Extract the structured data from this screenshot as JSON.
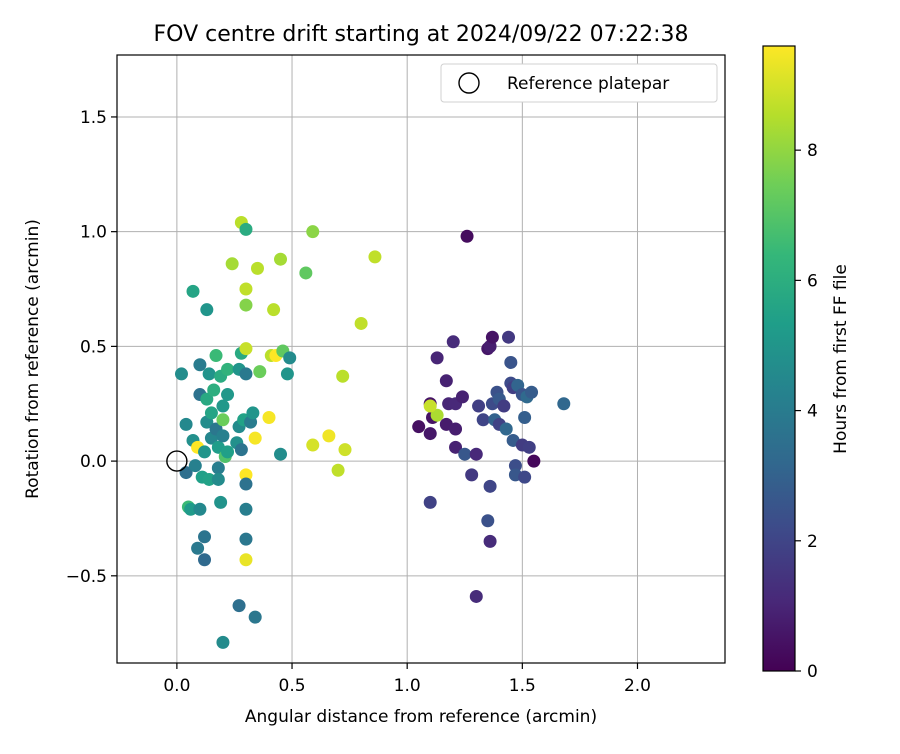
{
  "chart_data": {
    "type": "scatter",
    "title": "FOV centre drift starting at 2024/09/22 07:22:38",
    "xlabel": "Angular distance from reference (arcmin)",
    "ylabel": "Rotation from reference (arcmin)",
    "xlim": [
      -0.26,
      2.38
    ],
    "ylim": [
      -0.88,
      1.77
    ],
    "xticks": [
      "0.0",
      "0.5",
      "1.0",
      "1.5",
      "2.0"
    ],
    "yticks": [
      "−0.5",
      "0.0",
      "0.5",
      "1.0",
      "1.5"
    ],
    "xtick_values": [
      0,
      0.5,
      1.0,
      1.5,
      2.0
    ],
    "ytick_values": [
      -0.5,
      0,
      0.5,
      1.0,
      1.5
    ],
    "grid": true,
    "legend": {
      "position": "top-right",
      "label": "Reference platepar"
    },
    "reference_point": {
      "x": 0.0,
      "y": 0.0
    },
    "colorbar": {
      "label": "Hours from first FF file",
      "colormap": "viridis",
      "range": [
        0,
        9.6
      ],
      "ticks": [
        "0",
        "2",
        "4",
        "6",
        "8"
      ],
      "tick_values": [
        0,
        2,
        4,
        6,
        8
      ]
    },
    "colors": {
      "viridis_stops": [
        "#440154",
        "#482878",
        "#3e4989",
        "#31688e",
        "#26828e",
        "#1f9e89",
        "#35b779",
        "#6ece58",
        "#b5de2b",
        "#fde725"
      ],
      "grid": "#b0b0b0",
      "axis": "#000000"
    },
    "points": [
      {
        "x": 1.26,
        "y": 0.98,
        "h": 0.3
      },
      {
        "x": 1.55,
        "y": 0.0,
        "h": 0.2
      },
      {
        "x": 1.05,
        "y": 0.15,
        "h": 0.4
      },
      {
        "x": 1.1,
        "y": 0.12,
        "h": 0.6
      },
      {
        "x": 1.1,
        "y": 0.25,
        "h": 0.5
      },
      {
        "x": 1.11,
        "y": 0.19,
        "h": 0.5
      },
      {
        "x": 1.13,
        "y": 0.45,
        "h": 1.0
      },
      {
        "x": 1.17,
        "y": 0.35,
        "h": 0.9
      },
      {
        "x": 1.17,
        "y": 0.16,
        "h": 0.7
      },
      {
        "x": 1.18,
        "y": 0.25,
        "h": 1.0
      },
      {
        "x": 1.2,
        "y": 0.52,
        "h": 1.2
      },
      {
        "x": 1.21,
        "y": 0.06,
        "h": 0.9
      },
      {
        "x": 1.21,
        "y": 0.14,
        "h": 0.8
      },
      {
        "x": 1.21,
        "y": 0.25,
        "h": 1.1
      },
      {
        "x": 1.24,
        "y": 0.28,
        "h": 0.9
      },
      {
        "x": 1.25,
        "y": 0.03,
        "h": 2.6
      },
      {
        "x": 1.28,
        "y": -0.06,
        "h": 1.6
      },
      {
        "x": 1.3,
        "y": -0.59,
        "h": 1.2
      },
      {
        "x": 1.3,
        "y": 0.03,
        "h": 1.1
      },
      {
        "x": 1.31,
        "y": 0.24,
        "h": 1.8
      },
      {
        "x": 1.33,
        "y": 0.18,
        "h": 2.0
      },
      {
        "x": 1.35,
        "y": 0.49,
        "h": 0.6
      },
      {
        "x": 1.36,
        "y": 0.5,
        "h": 0.8
      },
      {
        "x": 1.37,
        "y": 0.54,
        "h": 0.5
      },
      {
        "x": 1.35,
        "y": -0.26,
        "h": 2.4
      },
      {
        "x": 1.36,
        "y": -0.35,
        "h": 1.2
      },
      {
        "x": 1.36,
        "y": -0.11,
        "h": 2.0
      },
      {
        "x": 1.37,
        "y": 0.25,
        "h": 2.2
      },
      {
        "x": 1.38,
        "y": 0.18,
        "h": 3.0
      },
      {
        "x": 1.39,
        "y": 0.3,
        "h": 2.4
      },
      {
        "x": 1.4,
        "y": 0.16,
        "h": 1.9
      },
      {
        "x": 1.4,
        "y": 0.27,
        "h": 2.7
      },
      {
        "x": 1.42,
        "y": 0.24,
        "h": 1.7
      },
      {
        "x": 1.43,
        "y": 0.14,
        "h": 3.2
      },
      {
        "x": 1.44,
        "y": 0.54,
        "h": 1.6
      },
      {
        "x": 1.45,
        "y": 0.43,
        "h": 2.5
      },
      {
        "x": 1.45,
        "y": 0.34,
        "h": 2.2
      },
      {
        "x": 1.46,
        "y": 0.32,
        "h": 1.8
      },
      {
        "x": 1.46,
        "y": 0.09,
        "h": 2.8
      },
      {
        "x": 1.47,
        "y": -0.02,
        "h": 2.3
      },
      {
        "x": 1.47,
        "y": -0.06,
        "h": 2.6
      },
      {
        "x": 1.48,
        "y": 0.33,
        "h": 3.1
      },
      {
        "x": 1.5,
        "y": 0.07,
        "h": 1.7
      },
      {
        "x": 1.5,
        "y": 0.29,
        "h": 2.5
      },
      {
        "x": 1.51,
        "y": -0.07,
        "h": 2.1
      },
      {
        "x": 1.51,
        "y": 0.19,
        "h": 2.9
      },
      {
        "x": 1.52,
        "y": 0.28,
        "h": 3.3
      },
      {
        "x": 1.53,
        "y": 0.06,
        "h": 1.8
      },
      {
        "x": 1.54,
        "y": 0.3,
        "h": 2.8
      },
      {
        "x": 1.68,
        "y": 0.25,
        "h": 3.2
      },
      {
        "x": 1.1,
        "y": -0.18,
        "h": 1.9
      },
      {
        "x": 1.13,
        "y": 0.2,
        "h": 8.4
      },
      {
        "x": 1.1,
        "y": 0.24,
        "h": 8.8
      },
      {
        "x": 0.02,
        "y": 0.38,
        "h": 4.7
      },
      {
        "x": 0.04,
        "y": 0.16,
        "h": 4.5
      },
      {
        "x": 0.04,
        "y": -0.05,
        "h": 3.5
      },
      {
        "x": 0.05,
        "y": -0.2,
        "h": 6.5
      },
      {
        "x": 0.06,
        "y": -0.21,
        "h": 5.2
      },
      {
        "x": 0.07,
        "y": 0.74,
        "h": 5.6
      },
      {
        "x": 0.07,
        "y": 0.09,
        "h": 4.8
      },
      {
        "x": 0.08,
        "y": -0.02,
        "h": 4.2
      },
      {
        "x": 0.09,
        "y": -0.38,
        "h": 3.9
      },
      {
        "x": 0.09,
        "y": 0.06,
        "h": 9.6
      },
      {
        "x": 0.1,
        "y": -0.21,
        "h": 4.5
      },
      {
        "x": 0.1,
        "y": 0.29,
        "h": 3.6
      },
      {
        "x": 0.1,
        "y": 0.42,
        "h": 4.0
      },
      {
        "x": 0.11,
        "y": -0.07,
        "h": 5.4
      },
      {
        "x": 0.12,
        "y": -0.33,
        "h": 3.7
      },
      {
        "x": 0.12,
        "y": -0.43,
        "h": 3.3
      },
      {
        "x": 0.12,
        "y": 0.04,
        "h": 5.0
      },
      {
        "x": 0.13,
        "y": 0.66,
        "h": 5.0
      },
      {
        "x": 0.13,
        "y": 0.17,
        "h": 4.7
      },
      {
        "x": 0.13,
        "y": 0.27,
        "h": 5.8
      },
      {
        "x": 0.14,
        "y": 0.38,
        "h": 4.9
      },
      {
        "x": 0.14,
        "y": -0.08,
        "h": 5.5
      },
      {
        "x": 0.15,
        "y": 0.1,
        "h": 4.4
      },
      {
        "x": 0.15,
        "y": 0.21,
        "h": 5.6
      },
      {
        "x": 0.16,
        "y": 0.31,
        "h": 6.0
      },
      {
        "x": 0.17,
        "y": 0.46,
        "h": 6.5
      },
      {
        "x": 0.17,
        "y": 0.14,
        "h": 3.8
      },
      {
        "x": 0.18,
        "y": -0.03,
        "h": 4.1
      },
      {
        "x": 0.18,
        "y": 0.06,
        "h": 5.3
      },
      {
        "x": 0.18,
        "y": -0.08,
        "h": 4.6
      },
      {
        "x": 0.19,
        "y": -0.18,
        "h": 4.9
      },
      {
        "x": 0.19,
        "y": 0.37,
        "h": 5.9
      },
      {
        "x": 0.2,
        "y": 0.24,
        "h": 5.1
      },
      {
        "x": 0.2,
        "y": 0.11,
        "h": 4.2
      },
      {
        "x": 0.2,
        "y": 0.18,
        "h": 7.4
      },
      {
        "x": 0.2,
        "y": -0.79,
        "h": 4.6
      },
      {
        "x": 0.21,
        "y": 0.02,
        "h": 6.9
      },
      {
        "x": 0.22,
        "y": 0.04,
        "h": 5.4
      },
      {
        "x": 0.22,
        "y": 0.29,
        "h": 5.1
      },
      {
        "x": 0.22,
        "y": 0.4,
        "h": 6.2
      },
      {
        "x": 0.24,
        "y": 0.86,
        "h": 8.3
      },
      {
        "x": 0.26,
        "y": 0.08,
        "h": 4.8
      },
      {
        "x": 0.27,
        "y": 0.15,
        "h": 4.6
      },
      {
        "x": 0.27,
        "y": -0.63,
        "h": 3.5
      },
      {
        "x": 0.27,
        "y": 0.4,
        "h": 5.0
      },
      {
        "x": 0.28,
        "y": 1.04,
        "h": 8.6
      },
      {
        "x": 0.28,
        "y": 0.05,
        "h": 3.7
      },
      {
        "x": 0.28,
        "y": 0.47,
        "h": 5.8
      },
      {
        "x": 0.29,
        "y": 0.18,
        "h": 5.5
      },
      {
        "x": 0.3,
        "y": 1.01,
        "h": 5.9
      },
      {
        "x": 0.3,
        "y": 0.75,
        "h": 8.7
      },
      {
        "x": 0.3,
        "y": 0.68,
        "h": 7.8
      },
      {
        "x": 0.3,
        "y": 0.49,
        "h": 8.8
      },
      {
        "x": 0.3,
        "y": 0.38,
        "h": 3.9
      },
      {
        "x": 0.3,
        "y": -0.06,
        "h": 9.6
      },
      {
        "x": 0.3,
        "y": -0.1,
        "h": 3.6
      },
      {
        "x": 0.3,
        "y": -0.21,
        "h": 4.1
      },
      {
        "x": 0.3,
        "y": -0.34,
        "h": 3.8
      },
      {
        "x": 0.3,
        "y": -0.43,
        "h": 9.3
      },
      {
        "x": 0.32,
        "y": 0.17,
        "h": 4.0
      },
      {
        "x": 0.33,
        "y": 0.21,
        "h": 5.0
      },
      {
        "x": 0.34,
        "y": -0.68,
        "h": 3.8
      },
      {
        "x": 0.34,
        "y": 0.1,
        "h": 9.5
      },
      {
        "x": 0.35,
        "y": 0.84,
        "h": 8.6
      },
      {
        "x": 0.36,
        "y": 0.39,
        "h": 7.4
      },
      {
        "x": 0.4,
        "y": 0.19,
        "h": 9.5
      },
      {
        "x": 0.41,
        "y": 0.46,
        "h": 8.6
      },
      {
        "x": 0.42,
        "y": 0.66,
        "h": 8.6
      },
      {
        "x": 0.43,
        "y": 0.46,
        "h": 9.6
      },
      {
        "x": 0.45,
        "y": 0.88,
        "h": 8.3
      },
      {
        "x": 0.45,
        "y": 0.03,
        "h": 4.7
      },
      {
        "x": 0.46,
        "y": 0.48,
        "h": 7.2
      },
      {
        "x": 0.48,
        "y": 0.38,
        "h": 5.0
      },
      {
        "x": 0.49,
        "y": 0.45,
        "h": 4.6
      },
      {
        "x": 0.56,
        "y": 0.82,
        "h": 7.2
      },
      {
        "x": 0.59,
        "y": 1.0,
        "h": 7.9
      },
      {
        "x": 0.59,
        "y": 0.07,
        "h": 9.0
      },
      {
        "x": 0.66,
        "y": 0.11,
        "h": 9.4
      },
      {
        "x": 0.7,
        "y": -0.04,
        "h": 8.7
      },
      {
        "x": 0.72,
        "y": 0.37,
        "h": 8.6
      },
      {
        "x": 0.73,
        "y": 0.05,
        "h": 8.9
      },
      {
        "x": 0.8,
        "y": 0.6,
        "h": 8.7
      },
      {
        "x": 0.86,
        "y": 0.89,
        "h": 8.7
      }
    ]
  }
}
